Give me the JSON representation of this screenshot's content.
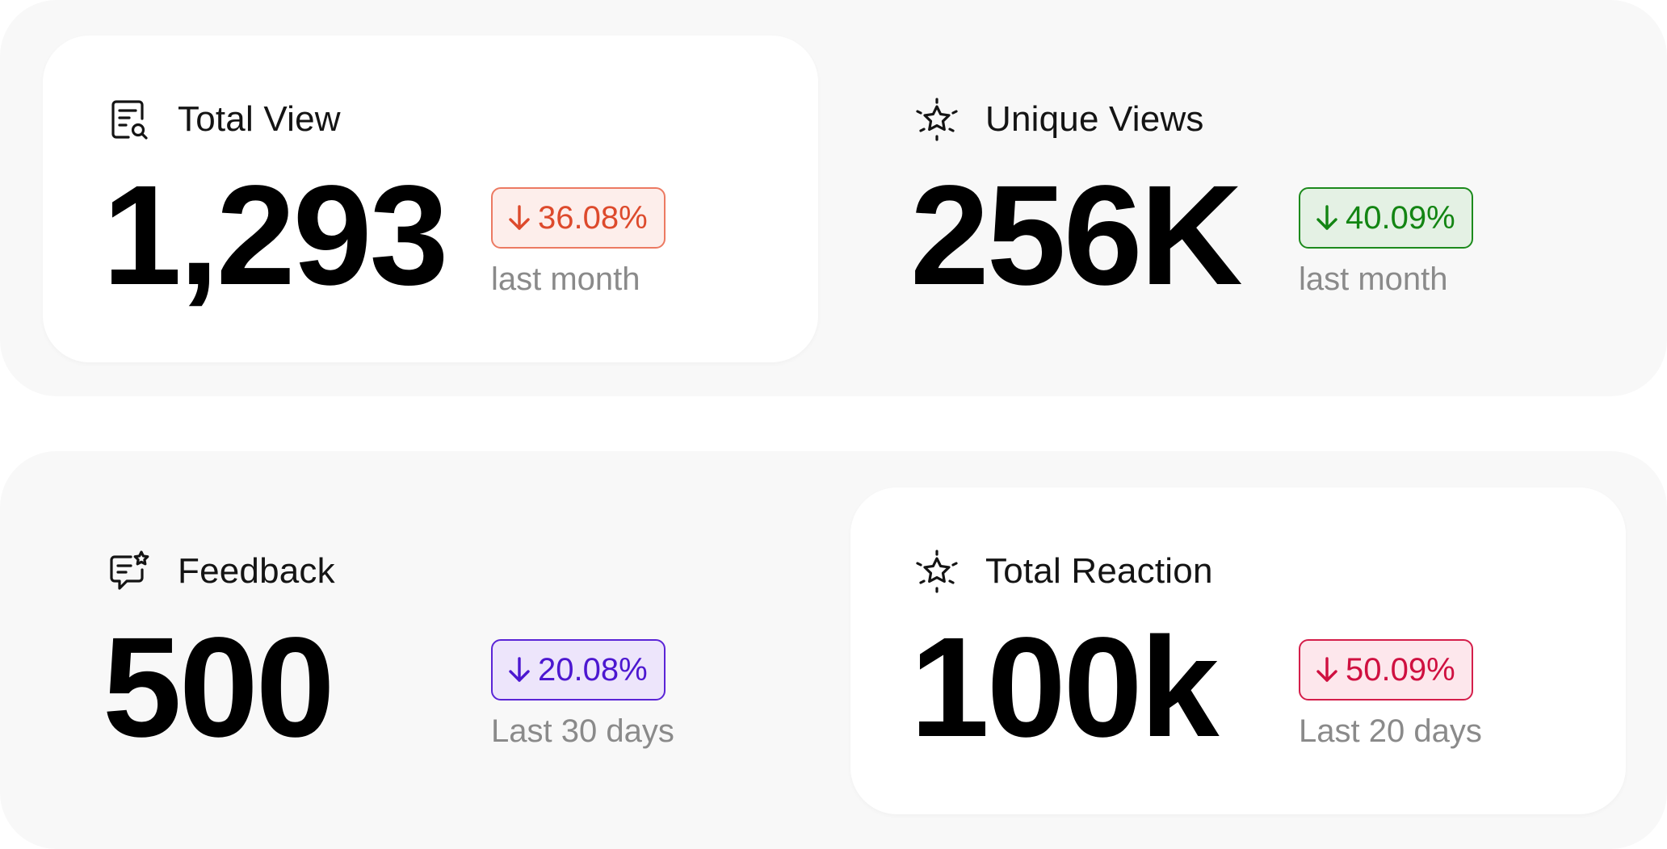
{
  "stats": [
    {
      "title": "Total View",
      "icon": "document-search-icon",
      "value": "1,293",
      "change": "36.08%",
      "change_direction": "down",
      "period": "last month",
      "accent": "#dd4a2c"
    },
    {
      "title": "Unique Views",
      "icon": "sparkle-star-icon",
      "value": "256K",
      "change": "40.09%",
      "change_direction": "down",
      "period": "last month",
      "accent": "#138513"
    },
    {
      "title": "Feedback",
      "icon": "chat-star-icon",
      "value": "500",
      "change": "20.08%",
      "change_direction": "down",
      "period": "Last 30 days",
      "accent": "#4c17d0"
    },
    {
      "title": "Total Reaction",
      "icon": "sparkle-star-icon",
      "value": "100k",
      "change": "50.09%",
      "change_direction": "down",
      "period": "Last 20 days",
      "accent": "#cf1040"
    }
  ]
}
